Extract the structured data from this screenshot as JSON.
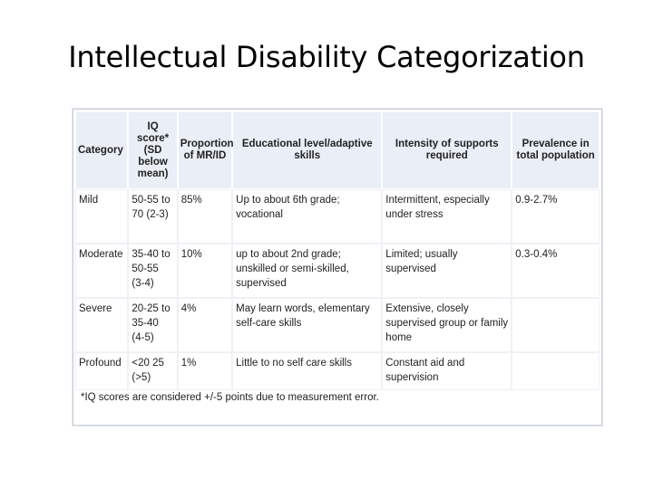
{
  "title": "Intellectual Disability Categorization",
  "table": {
    "headers": [
      "Category",
      "IQ score* (SD below mean)",
      "Proportion of MR/ID",
      "Educational level/adaptive skills",
      "Intensity of supports required",
      "Prevalence in total population"
    ],
    "rows": [
      [
        "Mild",
        "50-55 to 70 (2-3)",
        "85%",
        "Up to about 6th grade; vocational",
        "Intermittent, especially under stress",
        "0.9-2.7%"
      ],
      [
        "Moderate",
        "35-40 to 50-55 (3-4)",
        "10%",
        "up to about 2nd grade; unskilled or semi-skilled, supervised",
        "Limited; usually supervised",
        "0.3-0.4%"
      ],
      [
        "Severe",
        "20-25 to 35-40 (4-5)",
        "4%",
        "May learn words, elementary self-care skills",
        "Extensive, closely supervised group or family home",
        ""
      ],
      [
        "Profound",
        "<20 25 (>5)",
        "1%",
        "Little to no self care skills",
        "Constant aid and supervision",
        ""
      ]
    ],
    "footnote": "*IQ scores are considered +/-5 points due to measurement error."
  },
  "colors": {
    "header_bg": "#e9eef7",
    "border": "#c8cfd8"
  }
}
